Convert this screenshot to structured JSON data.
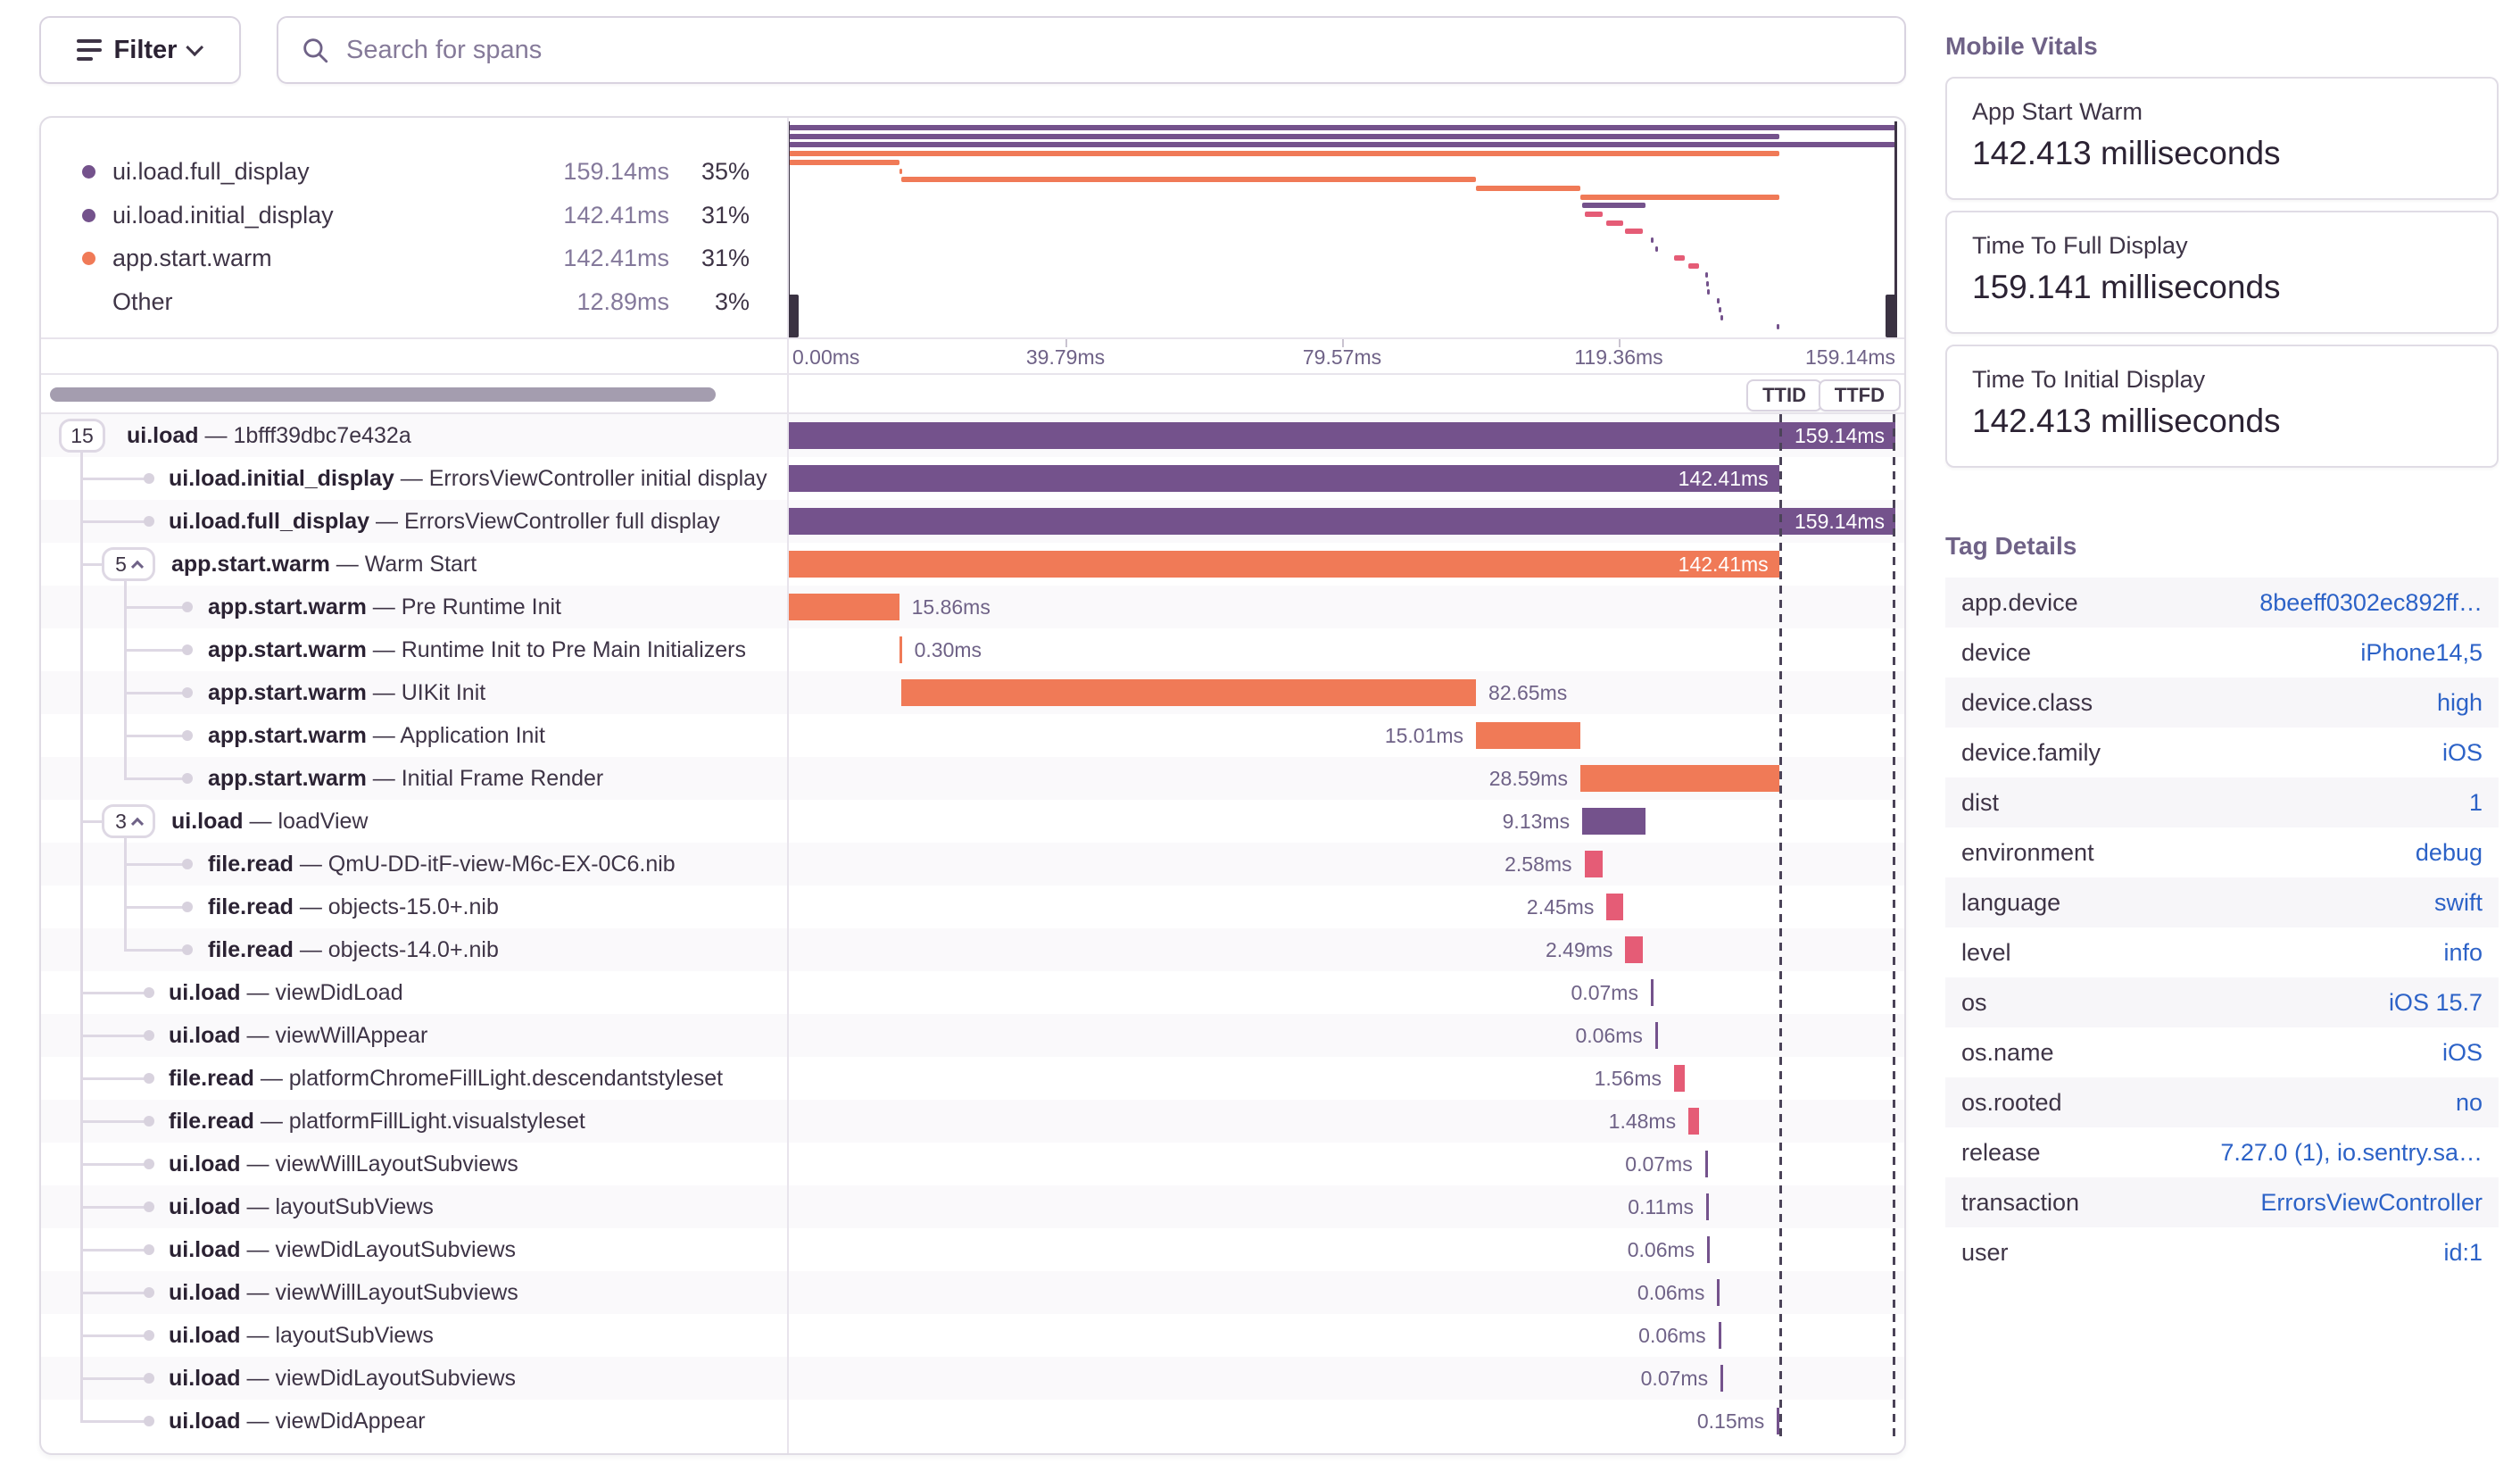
{
  "filter_button": {
    "label": "Filter"
  },
  "search": {
    "placeholder": "Search for spans"
  },
  "legend": {
    "items": [
      {
        "name": "ui.load.full_display",
        "duration": "159.14ms",
        "pct": "35%",
        "color": "purple"
      },
      {
        "name": "ui.load.initial_display",
        "duration": "142.41ms",
        "pct": "31%",
        "color": "purple"
      },
      {
        "name": "app.start.warm",
        "duration": "142.41ms",
        "pct": "31%",
        "color": "orange"
      },
      {
        "name": "Other",
        "duration": "12.89ms",
        "pct": "3%",
        "color": "none"
      }
    ]
  },
  "axis": {
    "labels": [
      "0.00ms",
      "39.79ms",
      "79.57ms",
      "119.36ms",
      "159.14ms"
    ]
  },
  "controls": {
    "ttid_label": "TTID",
    "ttfd_label": "TTFD",
    "ttid_pct": 89.49,
    "ttfd_pct": 100
  },
  "spans": [
    {
      "op": "ui.load",
      "desc": "1bfff39dbc7e432a",
      "badge": "15",
      "expand_chevron": false,
      "level": 0,
      "color": "purple",
      "start": 0,
      "width": 100,
      "duration": "159.14ms",
      "label_pos": "inside"
    },
    {
      "op": "ui.load.initial_display",
      "desc": "ErrorsViewController initial display",
      "level": 1,
      "color": "purple",
      "start": 0,
      "width": 89.49,
      "duration": "142.41ms",
      "label_pos": "inside"
    },
    {
      "op": "ui.load.full_display",
      "desc": "ErrorsViewController full display",
      "level": 1,
      "color": "purple",
      "start": 0,
      "width": 100,
      "duration": "159.14ms",
      "label_pos": "inside"
    },
    {
      "op": "app.start.warm",
      "desc": "Warm Start",
      "badge": "5",
      "expand_chevron": true,
      "level": 1,
      "color": "orange",
      "start": 0,
      "width": 89.49,
      "duration": "142.41ms",
      "label_pos": "inside"
    },
    {
      "op": "app.start.warm",
      "desc": "Pre Runtime Init",
      "level": 2,
      "color": "orange",
      "start": 0,
      "width": 9.97,
      "duration": "15.86ms",
      "label_pos": "right"
    },
    {
      "op": "app.start.warm",
      "desc": "Runtime Init to Pre Main Initializers",
      "level": 2,
      "color": "orange",
      "start": 9.97,
      "width": 0.19,
      "duration": "0.30ms",
      "label_pos": "right"
    },
    {
      "op": "app.start.warm",
      "desc": "UIKit Init",
      "level": 2,
      "color": "orange",
      "start": 10.16,
      "width": 51.94,
      "duration": "82.65ms",
      "label_pos": "right"
    },
    {
      "op": "app.start.warm",
      "desc": "Application Init",
      "level": 2,
      "color": "orange",
      "start": 62.1,
      "width": 9.43,
      "duration": "15.01ms",
      "label_pos": "left"
    },
    {
      "op": "app.start.warm",
      "desc": "Initial Frame Render",
      "level": 2,
      "color": "orange",
      "start": 71.53,
      "width": 17.96,
      "duration": "28.59ms",
      "label_pos": "left"
    },
    {
      "op": "ui.load",
      "desc": "loadView",
      "badge": "3",
      "expand_chevron": true,
      "level": 1,
      "color": "purple",
      "start": 71.7,
      "width": 5.74,
      "duration": "9.13ms",
      "label_pos": "left"
    },
    {
      "op": "file.read",
      "desc": "QmU-DD-itF-view-M6c-EX-0C6.nib",
      "level": 2,
      "color": "pink",
      "start": 71.9,
      "width": 1.62,
      "duration": "2.58ms",
      "label_pos": "left"
    },
    {
      "op": "file.read",
      "desc": "objects-15.0+.nib",
      "level": 2,
      "color": "pink",
      "start": 73.9,
      "width": 1.54,
      "duration": "2.45ms",
      "label_pos": "left"
    },
    {
      "op": "file.read",
      "desc": "objects-14.0+.nib",
      "level": 2,
      "color": "pink",
      "start": 75.6,
      "width": 1.56,
      "duration": "2.49ms",
      "label_pos": "left"
    },
    {
      "op": "ui.load",
      "desc": "viewDidLoad",
      "level": 1,
      "color": "purple",
      "start": 77.9,
      "width": 0.05,
      "duration": "0.07ms",
      "label_pos": "left"
    },
    {
      "op": "ui.load",
      "desc": "viewWillAppear",
      "level": 1,
      "color": "purple",
      "start": 78.3,
      "width": 0.05,
      "duration": "0.06ms",
      "label_pos": "left"
    },
    {
      "op": "file.read",
      "desc": "platformChromeFillLight.descendantstyleset",
      "level": 1,
      "color": "pink",
      "start": 80.0,
      "width": 0.98,
      "duration": "1.56ms",
      "label_pos": "left"
    },
    {
      "op": "file.read",
      "desc": "platformFillLight.visualstyleset",
      "level": 1,
      "color": "pink",
      "start": 81.3,
      "width": 0.93,
      "duration": "1.48ms",
      "label_pos": "left"
    },
    {
      "op": "ui.load",
      "desc": "viewWillLayoutSubviews",
      "level": 1,
      "color": "purple",
      "start": 82.8,
      "width": 0.05,
      "duration": "0.07ms",
      "label_pos": "left"
    },
    {
      "op": "ui.load",
      "desc": "layoutSubViews",
      "level": 1,
      "color": "purple",
      "start": 82.9,
      "width": 0.07,
      "duration": "0.11ms",
      "label_pos": "left"
    },
    {
      "op": "ui.load",
      "desc": "viewDidLayoutSubviews",
      "level": 1,
      "color": "purple",
      "start": 83.0,
      "width": 0.05,
      "duration": "0.06ms",
      "label_pos": "left"
    },
    {
      "op": "ui.load",
      "desc": "viewWillLayoutSubviews",
      "level": 1,
      "color": "purple",
      "start": 83.9,
      "width": 0.05,
      "duration": "0.06ms",
      "label_pos": "left"
    },
    {
      "op": "ui.load",
      "desc": "layoutSubViews",
      "level": 1,
      "color": "purple",
      "start": 84.0,
      "width": 0.05,
      "duration": "0.06ms",
      "label_pos": "left"
    },
    {
      "op": "ui.load",
      "desc": "viewDidLayoutSubviews",
      "level": 1,
      "color": "purple",
      "start": 84.2,
      "width": 0.05,
      "duration": "0.07ms",
      "label_pos": "left"
    },
    {
      "op": "ui.load",
      "desc": "viewDidAppear",
      "level": 1,
      "color": "purple",
      "start": 89.3,
      "width": 0.09,
      "duration": "0.15ms",
      "label_pos": "left"
    }
  ],
  "vitals": {
    "title": "Mobile Vitals",
    "cards": [
      {
        "label": "App Start Warm",
        "value": "142.413 milliseconds"
      },
      {
        "label": "Time To Full Display",
        "value": "159.141 milliseconds"
      },
      {
        "label": "Time To Initial Display",
        "value": "142.413 milliseconds"
      }
    ]
  },
  "tags": {
    "title": "Tag Details",
    "rows": [
      {
        "key": "app.device",
        "value": "8beeff0302ec892ff…"
      },
      {
        "key": "device",
        "value": "iPhone14,5"
      },
      {
        "key": "device.class",
        "value": "high"
      },
      {
        "key": "device.family",
        "value": "iOS"
      },
      {
        "key": "dist",
        "value": "1"
      },
      {
        "key": "environment",
        "value": "debug"
      },
      {
        "key": "language",
        "value": "swift"
      },
      {
        "key": "level",
        "value": "info"
      },
      {
        "key": "os",
        "value": "iOS 15.7"
      },
      {
        "key": "os.name",
        "value": "iOS"
      },
      {
        "key": "os.rooted",
        "value": "no"
      },
      {
        "key": "release",
        "value": "7.27.0 (1), io.sentry.sa…"
      },
      {
        "key": "transaction",
        "value": "ErrorsViewController"
      },
      {
        "key": "user",
        "value": "id:1"
      }
    ]
  },
  "colors": {
    "purple": "#74528C",
    "orange": "#F07A57",
    "pink": "#E55C76",
    "link_blue": "#2C62C7",
    "muted_text": "#6F6287",
    "dash_line": "#4B4358",
    "stripe": "#FAF9FB",
    "border": "#E0DCE5"
  }
}
